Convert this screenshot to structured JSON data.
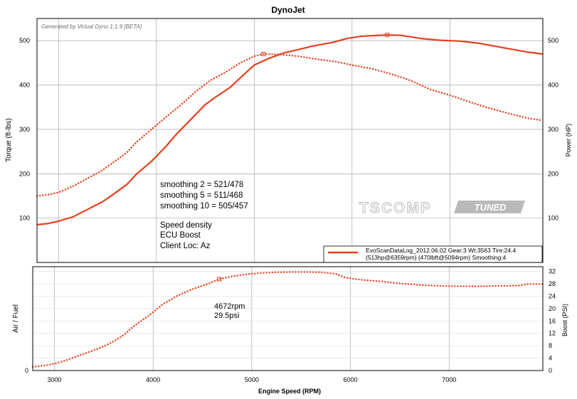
{
  "title": "DynoJet",
  "generated_by": "Generated by Virtual Dyno 1.1.9 [BETA]",
  "watermark": {
    "left": "TSCOMP",
    "right": "TUNED"
  },
  "annotations": [
    "smoothing 2 = 521/478",
    "smoothing 5 = 511/468",
    "smoothing 10 = 505/457",
    "Speed density",
    "ECU Boost",
    "Client Loc: Az"
  ],
  "legend": {
    "line1": "EvoScanDataLog_2012.06.02 Gear:3 Wt:3563 Tire:24.4",
    "line2": "(513hp@6359rpm) (470lbft@5094rpm) Smoothing:4"
  },
  "colors": {
    "series": "#e5401c",
    "grid": "#999999",
    "axis": "#000000"
  },
  "chart_data": [
    {
      "type": "line",
      "xlabel": "",
      "ylabel": "Torque (ft-lbs)",
      "y2label": "Power (HP)",
      "xlim": [
        2780,
        7950
      ],
      "ylim": [
        0,
        550
      ],
      "x_ticks": [
        3000,
        4000,
        5000,
        6000,
        7000
      ],
      "y_ticks": [
        100,
        200,
        300,
        400,
        500
      ],
      "y2_ticks": [
        100,
        200,
        300,
        400,
        500
      ],
      "grid": true,
      "legend_position": "bottom-right",
      "series": [
        {
          "name": "EvoScanDataLog_2012.06.02",
          "measure": "power",
          "style": "solid",
          "x": [
            2780,
            2900,
            3000,
            3150,
            3300,
            3450,
            3550,
            3700,
            3800,
            3950,
            4100,
            4200,
            4350,
            4500,
            4600,
            4750,
            4900,
            5000,
            5150,
            5300,
            5450,
            5600,
            5800,
            5950,
            6100,
            6359,
            6500,
            6700,
            6900,
            7100,
            7300,
            7500,
            7700,
            7800,
            7950
          ],
          "y": [
            85,
            88,
            93,
            103,
            120,
            137,
            152,
            176,
            200,
            228,
            262,
            288,
            322,
            356,
            372,
            394,
            425,
            445,
            460,
            472,
            480,
            488,
            496,
            505,
            510,
            513,
            512,
            505,
            501,
            499,
            494,
            486,
            478,
            474,
            470
          ]
        },
        {
          "name": "EvoScanDataLog_2012.06.02",
          "measure": "torque",
          "style": "dotted",
          "x": [
            2780,
            2900,
            3000,
            3150,
            3300,
            3450,
            3600,
            3700,
            3800,
            3950,
            4100,
            4250,
            4400,
            4550,
            4700,
            4850,
            5000,
            5094,
            5250,
            5450,
            5650,
            5850,
            6000,
            6200,
            6400,
            6600,
            6800,
            7000,
            7200,
            7400,
            7600,
            7800,
            7950
          ],
          "y": [
            150,
            153,
            158,
            172,
            190,
            208,
            232,
            248,
            272,
            300,
            328,
            355,
            385,
            410,
            428,
            449,
            465,
            470,
            469,
            465,
            458,
            452,
            445,
            437,
            425,
            410,
            390,
            377,
            362,
            348,
            336,
            325,
            320
          ]
        }
      ],
      "markers": [
        {
          "x": 6359,
          "y": 513,
          "series": "power"
        },
        {
          "x": 5094,
          "y": 470,
          "series": "torque"
        }
      ]
    },
    {
      "type": "line",
      "xlabel": "Engine Speed (RPM)",
      "ylabel": "Air / Fuel",
      "y2label": "Boost (PSI)",
      "xlim": [
        2780,
        7950
      ],
      "ylim": [
        0,
        33.5
      ],
      "x_ticks": [
        3000,
        4000,
        5000,
        6000,
        7000
      ],
      "y_ticks": [
        0
      ],
      "y2_ticks": [
        0,
        4,
        8,
        12,
        16,
        20,
        24,
        28,
        32
      ],
      "grid": true,
      "series": [
        {
          "name": "Boost",
          "style": "dotted",
          "x": [
            2780,
            2900,
            3000,
            3100,
            3200,
            3350,
            3500,
            3600,
            3700,
            3800,
            3950,
            4100,
            4250,
            4400,
            4550,
            4672,
            4800,
            4950,
            5100,
            5250,
            5400,
            5550,
            5700,
            5850,
            5950,
            6100,
            6300,
            6500,
            6700,
            6900,
            7100,
            7300,
            7500,
            7700,
            7800,
            7950
          ],
          "y": [
            1.2,
            1.6,
            2.2,
            3.1,
            4.3,
            6.0,
            7.8,
            9.4,
            11.4,
            14.2,
            17.6,
            21.4,
            24.2,
            26.3,
            27.9,
            29.5,
            30.4,
            31.1,
            31.5,
            31.7,
            31.8,
            31.8,
            31.7,
            31.2,
            30.0,
            29.3,
            28.8,
            28.1,
            27.6,
            27.3,
            27.2,
            27.2,
            27.3,
            27.4,
            27.9,
            27.9
          ]
        }
      ],
      "markers": [
        {
          "x": 4672,
          "y": 29.5,
          "label": [
            "4672rpm",
            "29.5psi"
          ]
        }
      ]
    }
  ]
}
